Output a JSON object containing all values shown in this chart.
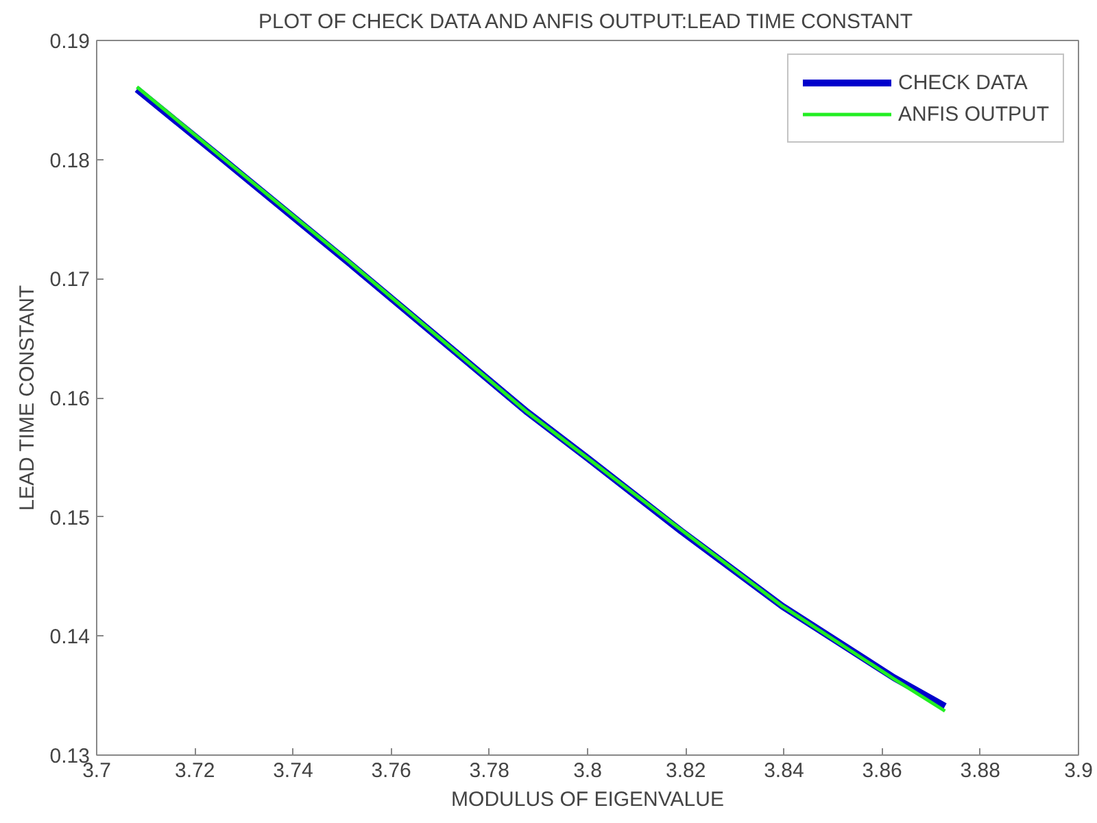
{
  "chart_data": {
    "type": "line",
    "title": "PLOT OF CHECK DATA AND ANFIS OUTPUT:LEAD TIME CONSTANT",
    "xlabel": "MODULUS OF EIGENVALUE",
    "ylabel": "LEAD TIME CONSTANT",
    "x": [
      3.7082,
      3.7249,
      3.7512,
      3.7877,
      3.8001,
      3.8191,
      3.8397,
      3.8624,
      3.8728
    ],
    "series": [
      {
        "name": "CHECK DATA",
        "color": "#0000cc",
        "values": [
          0.1859,
          0.1803,
          0.1714,
          0.1588,
          0.1549,
          0.1488,
          0.1425,
          0.1365,
          0.1341
        ]
      },
      {
        "name": "ANFIS OUTPUT",
        "color": "#22ee22",
        "values": [
          0.1861,
          0.1804,
          0.1715,
          0.1588,
          0.1549,
          0.1489,
          0.1425,
          0.1364,
          0.1337
        ]
      }
    ],
    "xlim": [
      3.7,
      3.9
    ],
    "xticks": [
      3.7,
      3.72,
      3.74,
      3.76,
      3.78,
      3.8,
      3.82,
      3.84,
      3.86,
      3.88,
      3.9
    ],
    "ylim": [
      0.13,
      0.19
    ],
    "yticks": [
      0.13,
      0.14,
      0.15,
      0.16,
      0.17,
      0.18,
      0.19
    ],
    "grid": false,
    "legend": "top right",
    "marker": "none",
    "line_style": "solid"
  }
}
